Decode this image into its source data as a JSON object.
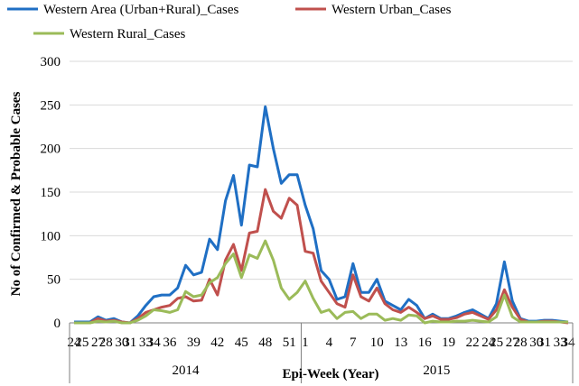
{
  "chart_data": {
    "type": "line",
    "ylabel": "No of Confirmed & Probable Cases",
    "xlabel": "Epi-Week (Year)",
    "ylim": [
      0,
      300
    ],
    "yticks": [
      0,
      50,
      100,
      150,
      200,
      250,
      300
    ],
    "grid": "horizontal",
    "legend_placement": "top-left",
    "x_labels_shown": [
      "24",
      "27",
      "30",
      "33",
      "36",
      "39",
      "42",
      "45",
      "48",
      "51",
      "1",
      "4",
      "7",
      "10",
      "13",
      "16",
      "19",
      "22",
      "25",
      "28",
      "31",
      "34"
    ],
    "years": [
      {
        "label": "2014",
        "from_index": 0,
        "to_index": 28
      },
      {
        "label": "2015",
        "from_index": 29,
        "to_index": 62
      }
    ],
    "weeks": [
      "24",
      "25",
      "26",
      "27",
      "28",
      "29",
      "30",
      "31",
      "32",
      "33",
      "34",
      "35",
      "36",
      "37",
      "38",
      "39",
      "40",
      "41",
      "42",
      "43",
      "44",
      "45",
      "46",
      "47",
      "48",
      "49",
      "50",
      "51",
      "52",
      "1",
      "2",
      "3",
      "4",
      "5",
      "6",
      "7",
      "8",
      "9",
      "10",
      "11",
      "12",
      "13",
      "14",
      "15",
      "16",
      "17",
      "18",
      "19",
      "20",
      "21",
      "22",
      "23",
      "24",
      "25",
      "26",
      "27",
      "28",
      "29",
      "30",
      "31",
      "32",
      "33",
      "34"
    ],
    "series": [
      {
        "name": "Western Area (Urban+Rural)_Cases",
        "color": "#1f6fc4",
        "values": [
          1,
          1,
          1,
          7,
          3,
          5,
          1,
          0,
          8,
          20,
          30,
          32,
          32,
          40,
          66,
          55,
          58,
          96,
          84,
          140,
          169,
          112,
          181,
          179,
          248,
          200,
          160,
          170,
          170,
          135,
          108,
          60,
          50,
          27,
          30,
          68,
          35,
          35,
          50,
          25,
          20,
          15,
          27,
          20,
          5,
          10,
          5,
          5,
          8,
          12,
          15,
          10,
          5,
          22,
          70,
          25,
          5,
          2,
          2,
          3,
          3,
          2,
          1
        ]
      },
      {
        "name": "Western Urban_Cases",
        "color": "#c0504d",
        "values": [
          0,
          0,
          0,
          5,
          2,
          3,
          1,
          0,
          5,
          12,
          15,
          18,
          20,
          28,
          30,
          25,
          26,
          50,
          32,
          72,
          90,
          60,
          103,
          105,
          153,
          128,
          120,
          143,
          135,
          82,
          80,
          48,
          35,
          22,
          18,
          55,
          30,
          25,
          40,
          22,
          15,
          12,
          18,
          12,
          5,
          8,
          4,
          4,
          6,
          10,
          12,
          8,
          4,
          15,
          38,
          18,
          4,
          1,
          1,
          2,
          2,
          1,
          0
        ]
      },
      {
        "name": "Western Rural_Cases",
        "color": "#9bbb59",
        "values": [
          0,
          0,
          0,
          2,
          1,
          2,
          0,
          0,
          3,
          8,
          15,
          14,
          12,
          15,
          36,
          30,
          32,
          46,
          52,
          68,
          79,
          52,
          78,
          74,
          94,
          72,
          40,
          27,
          35,
          48,
          28,
          12,
          15,
          5,
          12,
          13,
          5,
          10,
          10,
          3,
          5,
          3,
          9,
          8,
          0,
          2,
          1,
          1,
          2,
          2,
          3,
          2,
          1,
          7,
          32,
          7,
          1,
          1,
          1,
          1,
          1,
          1,
          1
        ]
      }
    ]
  }
}
